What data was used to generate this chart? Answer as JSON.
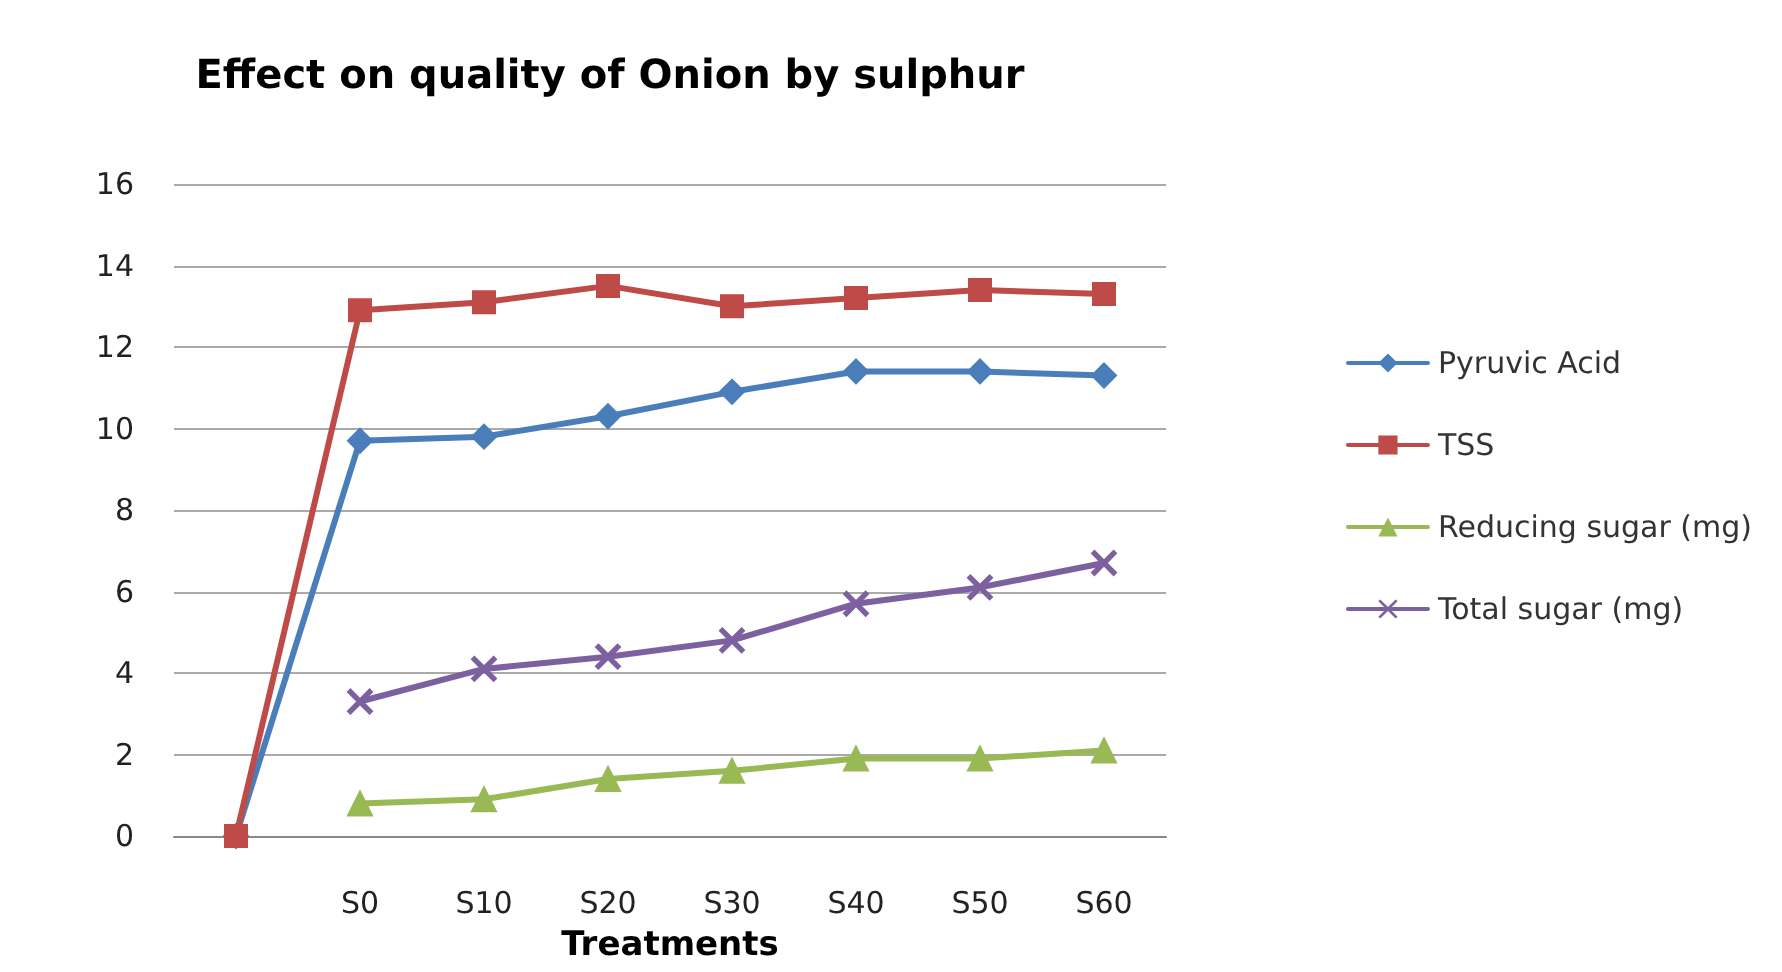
{
  "chart_data": {
    "type": "line",
    "title": "Effect on quality of Onion by sulphur",
    "xlabel": "Treatments",
    "categories": [
      null,
      "S0",
      "S10",
      "S20",
      "S30",
      "S40",
      "S50",
      "S60"
    ],
    "series": [
      {
        "name": "Pyruvic Acid",
        "color": "#4a7ebb",
        "marker": "diamond",
        "values": [
          0,
          9.7,
          9.8,
          10.3,
          10.9,
          11.4,
          11.4,
          11.3
        ]
      },
      {
        "name": "TSS",
        "color": "#be4b48",
        "marker": "square",
        "values": [
          0,
          12.9,
          13.1,
          13.5,
          13.0,
          13.2,
          13.4,
          13.3
        ]
      },
      {
        "name": "Reducing sugar (mg)",
        "color": "#98b954",
        "marker": "triangle",
        "values": [
          null,
          0.8,
          0.9,
          1.4,
          1.6,
          1.9,
          1.9,
          2.1
        ]
      },
      {
        "name": "Total sugar (mg)",
        "color": "#7d60a0",
        "marker": "cross",
        "values": [
          null,
          3.3,
          4.1,
          4.4,
          4.8,
          5.7,
          6.1,
          6.7
        ]
      }
    ],
    "ylim": [
      0,
      16
    ],
    "yticks": [
      0,
      2,
      4,
      6,
      8,
      10,
      12,
      14,
      16
    ],
    "grid": "y",
    "legend": "right"
  }
}
